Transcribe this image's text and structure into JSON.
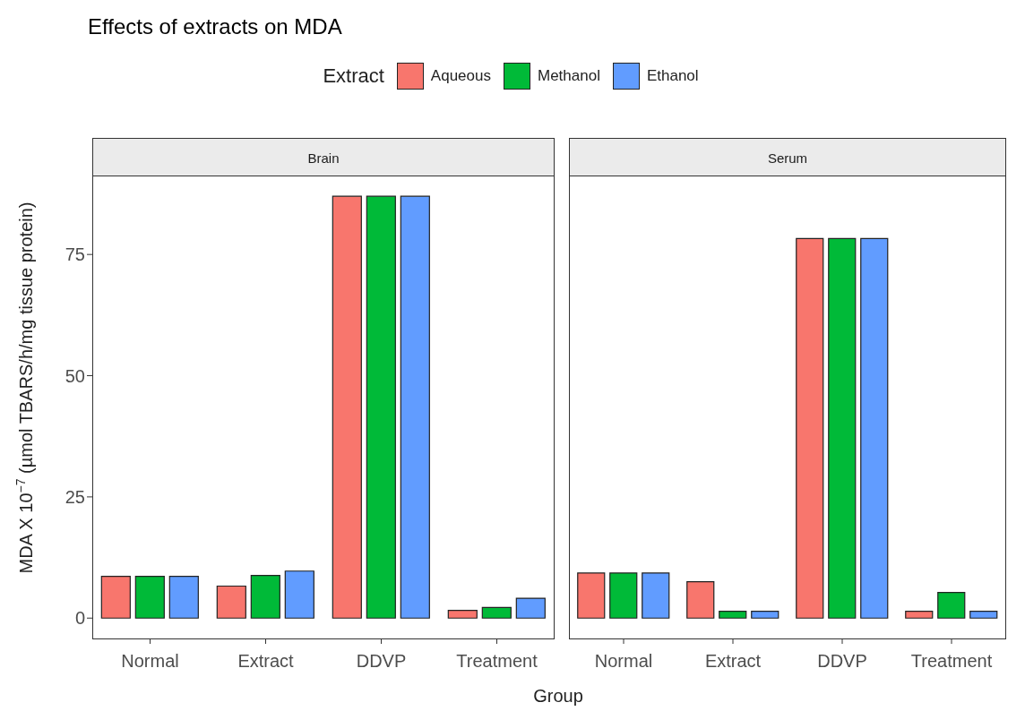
{
  "chart_data": [
    {
      "type": "bar",
      "title": "Effects of extracts on MDA",
      "subtitle": "Brain",
      "xlabel": "Group",
      "ylabel": "MDA X 10$^{−7}$ (µmol TBARS/h/mg tissue protein)",
      "legend_title": "Extract",
      "legend": "top",
      "categories": [
        "Normal",
        "Extract",
        "DDVP",
        "Treatment"
      ],
      "ylim": [
        -4.2,
        91.1
      ],
      "yticks": [
        0,
        25,
        50,
        75
      ],
      "series": [
        {
          "name": "Aqueous",
          "color": "#f8766d",
          "values": [
            8.6,
            6.6,
            87.0,
            1.6
          ]
        },
        {
          "name": "Methanol",
          "color": "#00ba38",
          "values": [
            8.6,
            8.8,
            87.0,
            2.2
          ]
        },
        {
          "name": "Ethanol",
          "color": "#619cff",
          "values": [
            8.6,
            9.7,
            87.0,
            4.1
          ]
        }
      ]
    },
    {
      "type": "bar",
      "subtitle": "Serum",
      "tick_labels": "x",
      "categories": [
        "Normal",
        "Extract",
        "DDVP",
        "Treatment"
      ],
      "ylim": [
        -4.2,
        91.1
      ],
      "yticks": [
        0,
        25,
        50,
        75
      ],
      "series": [
        {
          "color": "#f8766d",
          "values": [
            9.3,
            7.5,
            78.3,
            1.4
          ]
        },
        {
          "color": "#00ba38",
          "values": [
            9.3,
            1.4,
            78.3,
            5.3
          ]
        },
        {
          "color": "#619cff",
          "values": [
            9.3,
            1.4,
            78.3,
            1.4
          ]
        }
      ]
    }
  ]
}
